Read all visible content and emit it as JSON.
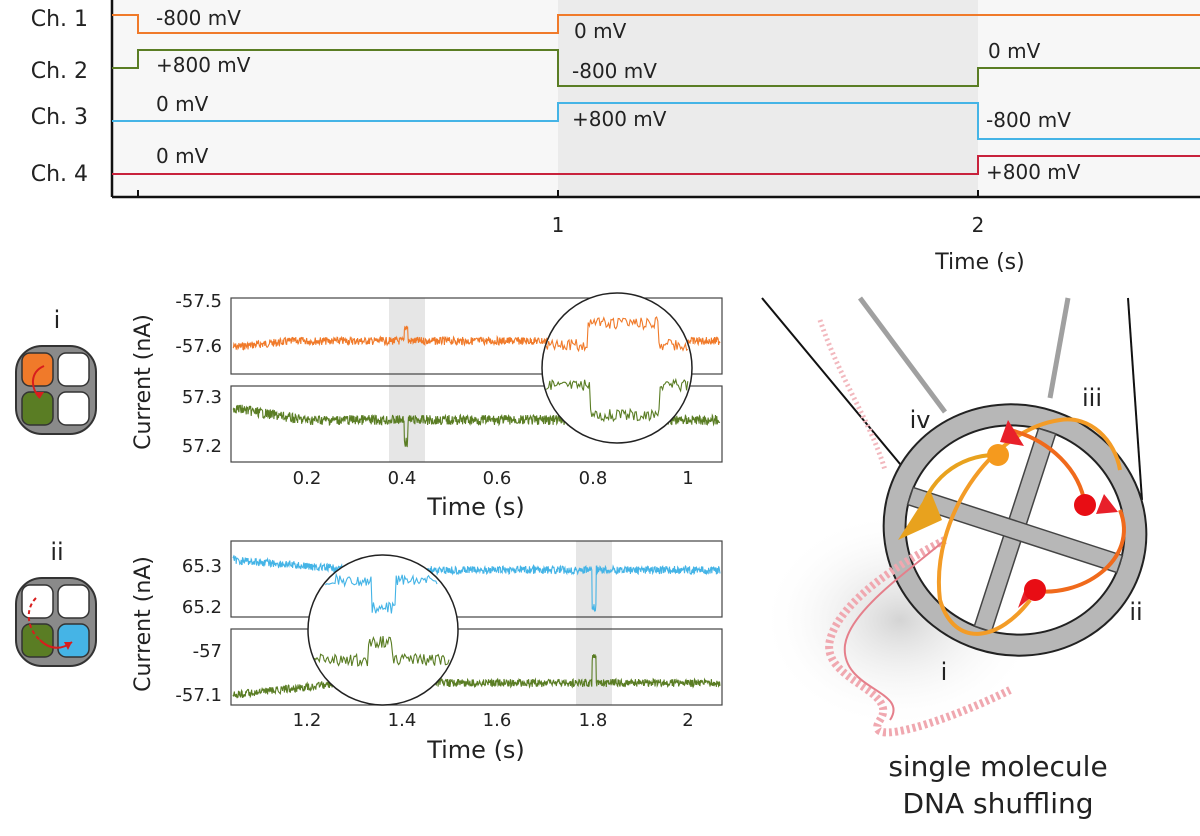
{
  "voltage_protocol": {
    "channels": [
      "Ch. 1",
      "Ch. 2",
      "Ch. 3",
      "Ch. 4"
    ],
    "x_ticks": [
      "1",
      "2"
    ],
    "x_label": "Time (s)",
    "segment_labels": [
      {
        "text": "-800 mV"
      },
      {
        "text": "0 mV"
      },
      {
        "text": "+800 mV"
      },
      {
        "text": "-800 mV"
      },
      {
        "text": "0 mV"
      },
      {
        "text": "0 mV"
      },
      {
        "text": "+800 mV"
      },
      {
        "text": "-800 mV"
      },
      {
        "text": "0 mV"
      },
      {
        "text": "+800 mV"
      }
    ]
  },
  "panel_i": {
    "label": "i",
    "y_label": "Current (nA)",
    "x_label": "Time (s)",
    "top_ticks": [
      "-57.5",
      "-57.6"
    ],
    "bottom_ticks": [
      "57.3",
      "57.2"
    ],
    "x_ticks": [
      "0.2",
      "0.4",
      "0.6",
      "0.8",
      "1"
    ]
  },
  "panel_ii": {
    "label": "ii",
    "y_label": "Current (nA)",
    "x_label": "Time (s)",
    "top_ticks": [
      "65.3",
      "65.2"
    ],
    "bottom_ticks": [
      "-57",
      "-57.1"
    ],
    "x_ticks": [
      "1.2",
      "1.4",
      "1.6",
      "1.8",
      "2"
    ]
  },
  "diagram": {
    "labels": [
      "iv",
      "iii",
      "ii",
      "i"
    ],
    "caption_line1": "single molecule",
    "caption_line2": "DNA shuffling"
  },
  "colors": {
    "ch1": "#f07a2a",
    "ch2": "#5a7d24",
    "ch3": "#45b4e6",
    "ch4": "#c8223c",
    "shade": "#dcdcdc"
  },
  "chart_data": [
    {
      "type": "line",
      "title": "",
      "xlabel": "Time (s)",
      "ylabel": "",
      "x_ticks": [
        1,
        2
      ],
      "series": [
        {
          "name": "Ch. 1",
          "steps": [
            {
              "t_start": 0,
              "t_end": 1,
              "mV": -800
            },
            {
              "t_start": 1,
              "t_end": 3,
              "mV": 0
            }
          ]
        },
        {
          "name": "Ch. 2",
          "steps": [
            {
              "t_start": 0,
              "t_end": 1,
              "mV": 800
            },
            {
              "t_start": 1,
              "t_end": 2,
              "mV": -800
            },
            {
              "t_start": 2,
              "t_end": 3,
              "mV": 0
            }
          ]
        },
        {
          "name": "Ch. 3",
          "steps": [
            {
              "t_start": 0,
              "t_end": 1,
              "mV": 0
            },
            {
              "t_start": 1,
              "t_end": 2,
              "mV": 800
            },
            {
              "t_start": 2,
              "t_end": 3,
              "mV": -800
            }
          ]
        },
        {
          "name": "Ch. 4",
          "steps": [
            {
              "t_start": 0,
              "t_end": 2,
              "mV": 0
            },
            {
              "t_start": 2,
              "t_end": 3,
              "mV": 800
            }
          ]
        }
      ]
    },
    {
      "type": "line",
      "xlabel": "Time (s)",
      "ylabel": "Current (nA)",
      "xlim": [
        0.07,
        1.05
      ],
      "top_ylim": [
        -57.65,
        -57.5
      ],
      "bottom_ylim": [
        57.18,
        57.32
      ],
      "highlight_x": [
        0.39,
        0.45
      ],
      "series": [
        {
          "name": "",
          "mean": -57.6,
          "event_t": 0.42
        },
        {
          "name": "",
          "mean": 57.25,
          "event_t": 0.42
        }
      ]
    },
    {
      "type": "line",
      "xlabel": "Time (s)",
      "ylabel": "Current (nA)",
      "xlim": [
        1.07,
        2.05
      ],
      "top_ylim": [
        65.2,
        65.33
      ],
      "bottom_ylim": [
        -57.11,
        -56.98
      ],
      "highlight_x": [
        1.77,
        1.83
      ],
      "series": [
        {
          "name": "",
          "mean": 65.28,
          "event_t": 1.8
        },
        {
          "name": "",
          "mean": -57.08,
          "event_t": 1.8
        }
      ]
    }
  ]
}
